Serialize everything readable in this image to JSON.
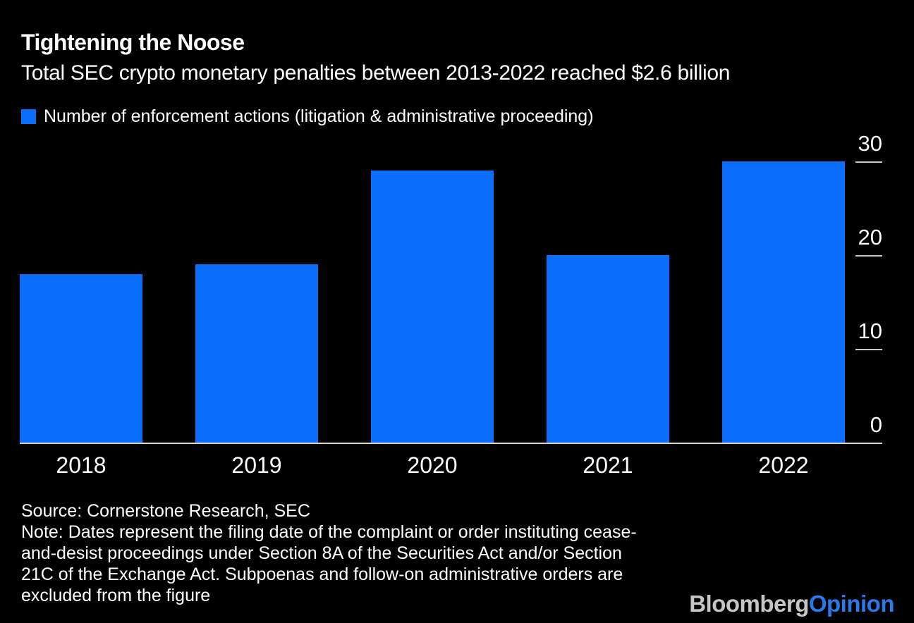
{
  "title": "Tightening the Noose",
  "subtitle": "Total SEC crypto monetary penalties between 2013-2022 reached $2.6 billion",
  "legend": {
    "label": "Number of enforcement actions (litigation & administrative proceeding)"
  },
  "chart_data": {
    "type": "bar",
    "title": "Tightening the Noose",
    "subtitle": "Total SEC crypto monetary penalties between 2013-2022 reached $2.6 billion",
    "categories": [
      "2018",
      "2019",
      "2020",
      "2021",
      "2022"
    ],
    "series": [
      {
        "name": "Number of enforcement actions (litigation & administrative proceeding)",
        "values": [
          18,
          19,
          29,
          20,
          30
        ]
      }
    ],
    "xlabel": "",
    "ylabel": "",
    "ylim": [
      0,
      30
    ],
    "yticks": [
      0,
      10,
      20,
      30
    ],
    "y_axis_side": "right",
    "grid": false,
    "legend_position": "top-left"
  },
  "footer": {
    "source": "Source: Cornerstone Research, SEC",
    "note": "Note: Dates represent the filing date of the complaint or order instituting cease-\nand-desist proceedings under Section 8A of the Securities Act and/or Section\n21C of the Exchange Act. Subpoenas and follow-on administrative orders are\nexcluded from the figure"
  },
  "branding": {
    "brand": "Bloomberg",
    "product": "Opinion"
  },
  "colors": {
    "background": "#000000",
    "text": "#ffffff",
    "bar": "#0a6efa",
    "baseline": "#d9d3c9",
    "tick": "#c9c9c9",
    "brand_gray": "#c6c6c6",
    "brand_blue": "#2a79e9"
  }
}
